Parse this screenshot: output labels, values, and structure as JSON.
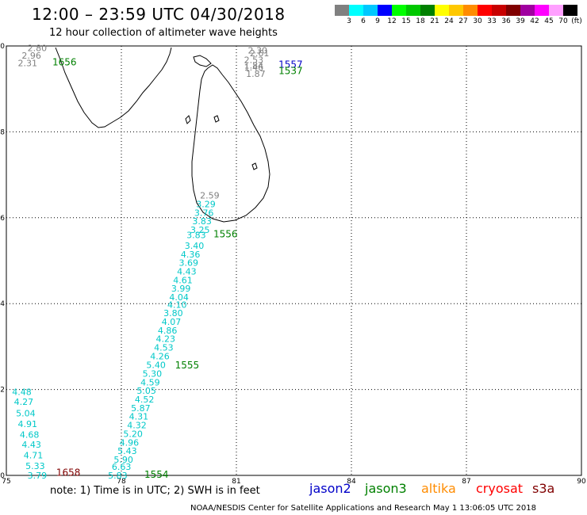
{
  "header": {
    "title": "12:00 – 23:59 UTC 04/30/2018",
    "subtitle": "12 hour collection of altimeter wave heights"
  },
  "colorbar": {
    "labels": [
      "3",
      "6",
      "9",
      "12",
      "15",
      "18",
      "21",
      "24",
      "27",
      "30",
      "33",
      "36",
      "39",
      "42",
      "45",
      "70",
      "(ft)"
    ],
    "colors": [
      "#808080",
      "#00ffff",
      "#00c8ff",
      "#0000ff",
      "#00ff00",
      "#00c800",
      "#008000",
      "#ffff00",
      "#ffc800",
      "#ff8c00",
      "#ff0000",
      "#c80000",
      "#800000",
      "#a000a0",
      "#ff00ff",
      "#ffa0ff",
      "#000000"
    ]
  },
  "map": {
    "lon_ticks": [
      "75",
      "78",
      "81",
      "84",
      "87",
      "90"
    ],
    "lat_ticks": [
      "0",
      "2",
      "4",
      "6",
      "8",
      "10"
    ],
    "lon_range": [
      75,
      90
    ],
    "lat_range": [
      0,
      10
    ],
    "tracks": [
      {
        "time": "1656",
        "color": "#008000",
        "lon": 76.2,
        "lat": 9.6
      },
      {
        "time": "1557",
        "color": "#0000c8",
        "lon": 82.1,
        "lat": 9.55
      },
      {
        "time": "1537",
        "color": "#008000",
        "lon": 82.1,
        "lat": 9.4
      },
      {
        "time": "1556",
        "color": "#008000",
        "lon": 80.4,
        "lat": 5.6
      },
      {
        "time": "1555",
        "color": "#008000",
        "lon": 79.4,
        "lat": 2.55
      },
      {
        "time": "1554",
        "color": "#008000",
        "lon": 78.6,
        "lat": 0.0
      },
      {
        "time": "1658",
        "color": "#800000",
        "lon": 76.3,
        "lat": 0.05
      }
    ],
    "obs": [
      {
        "v": "2.80",
        "c": "#808080",
        "lon": 75.55,
        "lat": 9.95
      },
      {
        "v": "2.96",
        "c": "#808080",
        "lon": 75.4,
        "lat": 9.78
      },
      {
        "v": "2.31",
        "c": "#808080",
        "lon": 75.3,
        "lat": 9.6
      },
      {
        "v": "2.30",
        "c": "#808080",
        "lon": 81.3,
        "lat": 9.9
      },
      {
        "v": "2.61",
        "c": "#808080",
        "lon": 81.35,
        "lat": 9.83
      },
      {
        "v": "2.53",
        "c": "#808080",
        "lon": 81.2,
        "lat": 9.68
      },
      {
        "v": "1.84",
        "c": "#808080",
        "lon": 81.2,
        "lat": 9.55
      },
      {
        "v": "1.46",
        "c": "#808080",
        "lon": 81.2,
        "lat": 9.5
      },
      {
        "v": "1.87",
        "c": "#808080",
        "lon": 81.25,
        "lat": 9.35
      },
      {
        "v": "2.59",
        "c": "#808080",
        "lon": 80.05,
        "lat": 6.52
      },
      {
        "v": "3.29",
        "c": "#00c8c8",
        "lon": 79.95,
        "lat": 6.32
      },
      {
        "v": "3.76",
        "c": "#00c8c8",
        "lon": 79.9,
        "lat": 6.12
      },
      {
        "v": "3.83",
        "c": "#00c8c8",
        "lon": 79.85,
        "lat": 5.92
      },
      {
        "v": "3.25",
        "c": "#00c8c8",
        "lon": 79.8,
        "lat": 5.72
      },
      {
        "v": "3.83",
        "c": "#00c8c8",
        "lon": 79.7,
        "lat": 5.6
      },
      {
        "v": "3.40",
        "c": "#00c8c8",
        "lon": 79.65,
        "lat": 5.35
      },
      {
        "v": "4.36",
        "c": "#00c8c8",
        "lon": 79.55,
        "lat": 5.15
      },
      {
        "v": "3.69",
        "c": "#00c8c8",
        "lon": 79.5,
        "lat": 4.95
      },
      {
        "v": "4.43",
        "c": "#00c8c8",
        "lon": 79.45,
        "lat": 4.75
      },
      {
        "v": "4.61",
        "c": "#00c8c8",
        "lon": 79.35,
        "lat": 4.55
      },
      {
        "v": "3.99",
        "c": "#00c8c8",
        "lon": 79.3,
        "lat": 4.35
      },
      {
        "v": "4.04",
        "c": "#00c8c8",
        "lon": 79.25,
        "lat": 4.15
      },
      {
        "v": "4.10",
        "c": "#00c8c8",
        "lon": 79.2,
        "lat": 3.98
      },
      {
        "v": "3.80",
        "c": "#00c8c8",
        "lon": 79.1,
        "lat": 3.78
      },
      {
        "v": "4.07",
        "c": "#00c8c8",
        "lon": 79.05,
        "lat": 3.58
      },
      {
        "v": "4.86",
        "c": "#00c8c8",
        "lon": 78.95,
        "lat": 3.38
      },
      {
        "v": "4.23",
        "c": "#00c8c8",
        "lon": 78.9,
        "lat": 3.18
      },
      {
        "v": "4.53",
        "c": "#00c8c8",
        "lon": 78.85,
        "lat": 2.98
      },
      {
        "v": "4.26",
        "c": "#00c8c8",
        "lon": 78.75,
        "lat": 2.78
      },
      {
        "v": "5.40",
        "c": "#00c8c8",
        "lon": 78.65,
        "lat": 2.57
      },
      {
        "v": "5.30",
        "c": "#00c8c8",
        "lon": 78.55,
        "lat": 2.37
      },
      {
        "v": "4.59",
        "c": "#00c8c8",
        "lon": 78.5,
        "lat": 2.17
      },
      {
        "v": "5.05",
        "c": "#00c8c8",
        "lon": 78.4,
        "lat": 1.97
      },
      {
        "v": "4.52",
        "c": "#00c8c8",
        "lon": 78.35,
        "lat": 1.77
      },
      {
        "v": "5.87",
        "c": "#00c8c8",
        "lon": 78.25,
        "lat": 1.57
      },
      {
        "v": "4.31",
        "c": "#00c8c8",
        "lon": 78.2,
        "lat": 1.37
      },
      {
        "v": "4.32",
        "c": "#00c8c8",
        "lon": 78.15,
        "lat": 1.17
      },
      {
        "v": "5.20",
        "c": "#00c8c8",
        "lon": 78.05,
        "lat": 0.97
      },
      {
        "v": "4.96",
        "c": "#00c8c8",
        "lon": 77.95,
        "lat": 0.77
      },
      {
        "v": "5.43",
        "c": "#00c8c8",
        "lon": 77.9,
        "lat": 0.57
      },
      {
        "v": "5.90",
        "c": "#00c8c8",
        "lon": 77.8,
        "lat": 0.37
      },
      {
        "v": "6.63",
        "c": "#00c8c8",
        "lon": 77.75,
        "lat": 0.2
      },
      {
        "v": "5.83",
        "c": "#00c8c8",
        "lon": 77.65,
        "lat": 0.0
      },
      {
        "v": "4.48",
        "c": "#00c8c8",
        "lon": 75.15,
        "lat": 1.95
      },
      {
        "v": "4.27",
        "c": "#00c8c8",
        "lon": 75.2,
        "lat": 1.72
      },
      {
        "v": "5.04",
        "c": "#00c8c8",
        "lon": 75.25,
        "lat": 1.45
      },
      {
        "v": "4.91",
        "c": "#00c8c8",
        "lon": 75.3,
        "lat": 1.2
      },
      {
        "v": "4.68",
        "c": "#00c8c8",
        "lon": 75.35,
        "lat": 0.95
      },
      {
        "v": "4.43",
        "c": "#00c8c8",
        "lon": 75.4,
        "lat": 0.72
      },
      {
        "v": "4.71",
        "c": "#00c8c8",
        "lon": 75.45,
        "lat": 0.47
      },
      {
        "v": "5.33",
        "c": "#00c8c8",
        "lon": 75.5,
        "lat": 0.22
      },
      {
        "v": "3.79",
        "c": "#00c8c8",
        "lon": 75.55,
        "lat": 0.0
      }
    ]
  },
  "note": "note: 1) Time is in UTC; 2) SWH is in feet",
  "satellites": [
    {
      "name": "jason2",
      "color": "#0000c8"
    },
    {
      "name": "jason3",
      "color": "#008000"
    },
    {
      "name": "altika",
      "color": "#ff8c00"
    },
    {
      "name": "cryosat",
      "color": "#ff0000"
    },
    {
      "name": "s3a",
      "color": "#800000"
    }
  ],
  "footer": "NOAA/NESDIS Center for Satellite Applications and Research    May  1 13:06:05 UTC 2018"
}
